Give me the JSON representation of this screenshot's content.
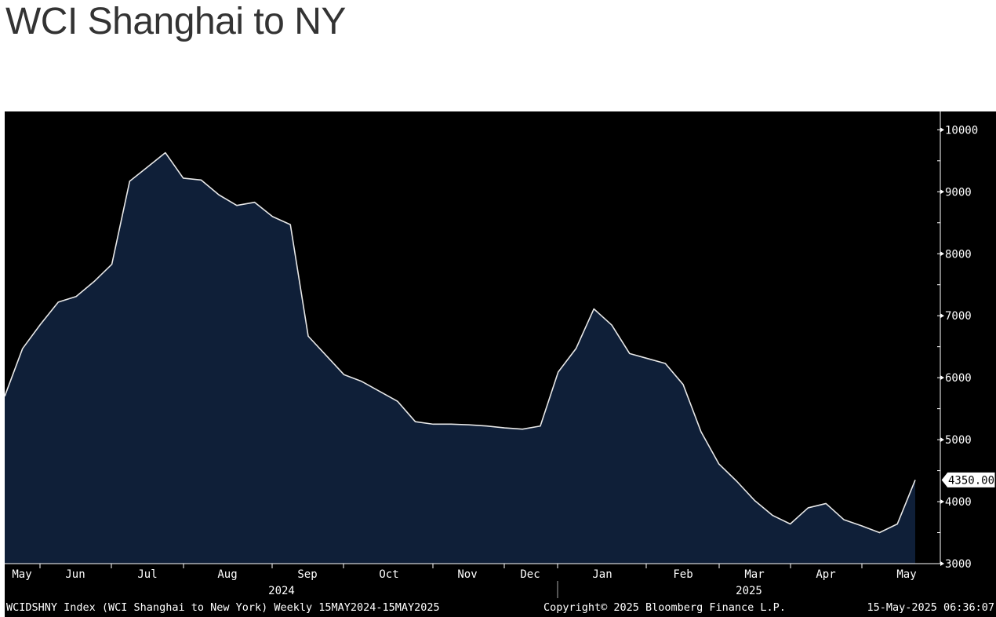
{
  "page": {
    "title": "WCI Shanghai to NY"
  },
  "footer": {
    "description": "WCIDSHNY Index (WCI Shanghai to New York)  Weekly 15MAY2024-15MAY2025",
    "copyright": "Copyright© 2025 Bloomberg Finance L.P.",
    "timestamp": "15-May-2025 06:36:07"
  },
  "colors": {
    "background": "#000000",
    "area_fill": "#0f1f38",
    "line": "#e8e8e8",
    "axis": "#ffffff"
  },
  "chart_data": {
    "type": "area",
    "title": "WCI Shanghai to NY",
    "ylim": [
      2900,
      10200
    ],
    "y_ticks": [
      3000,
      4000,
      5000,
      6000,
      7000,
      8000,
      9000,
      10000
    ],
    "y_tick_labels": [
      "3000",
      "4000",
      "5000",
      "6000",
      "7000",
      "8000",
      "9000",
      "10000"
    ],
    "y_axis_side": "right",
    "last_value_label": "4350.00",
    "x_month_labels": [
      "May",
      "Jun",
      "Jul",
      "Aug",
      "Sep",
      "Oct",
      "Nov",
      "Dec",
      "Jan",
      "Feb",
      "Mar",
      "Apr",
      "May"
    ],
    "x_year_labels": [
      "2024",
      "2025"
    ],
    "grid": false,
    "series": [
      {
        "values": [
          5700,
          6470,
          6860,
          7220,
          7310,
          7550,
          7830,
          9170,
          9400,
          9630,
          9220,
          9190,
          8950,
          8780,
          8830,
          8600,
          8470,
          6670,
          6360,
          6050,
          5940,
          5780,
          5620,
          5290,
          5250,
          5250,
          5240,
          5220,
          5190,
          5170,
          5220,
          6090,
          6470,
          7110,
          6850,
          6390,
          6310,
          6230,
          5890,
          5130,
          4610,
          4330,
          4020,
          3780,
          3640,
          3900,
          3970,
          3710,
          3610,
          3500,
          3640,
          4350
        ]
      }
    ]
  }
}
